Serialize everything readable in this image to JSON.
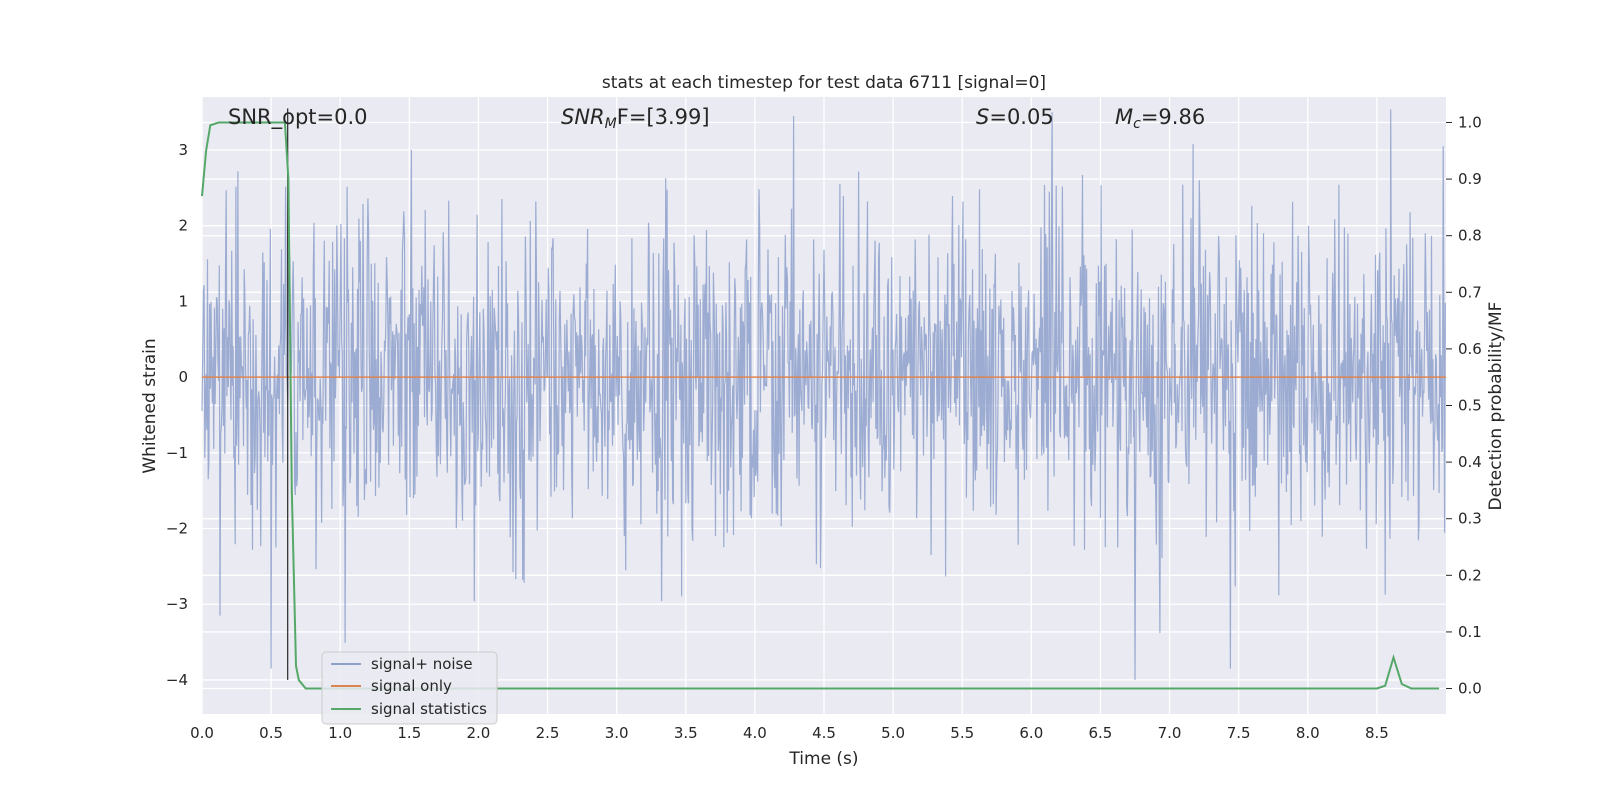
{
  "chart_data": {
    "type": "line",
    "title": "stats at each timestep for test data 6711 [signal=0]",
    "xlabel": "Time (s)",
    "ylabel": "Whitened strain",
    "y2label": "Detection probability/MF",
    "xlim": [
      0,
      9.0
    ],
    "ylim": [
      -4.45,
      3.7
    ],
    "y2lim": [
      -0.045,
      1.045
    ],
    "x_ticks": [
      0.0,
      0.5,
      1.0,
      1.5,
      2.0,
      2.5,
      3.0,
      3.5,
      4.0,
      4.5,
      5.0,
      5.5,
      6.0,
      6.5,
      7.0,
      7.5,
      8.0,
      8.5
    ],
    "x_tick_labels": [
      "0.0",
      "0.5",
      "1.0",
      "1.5",
      "2.0",
      "2.5",
      "3.0",
      "3.5",
      "4.0",
      "4.5",
      "5.0",
      "5.5",
      "6.0",
      "6.5",
      "7.0",
      "7.5",
      "8.0",
      "8.5"
    ],
    "y_ticks": [
      3,
      2,
      1,
      0,
      -1,
      -2,
      -3,
      -4
    ],
    "y_tick_labels": [
      "3",
      "2",
      "1",
      "0",
      "−1",
      "−2",
      "−3",
      "−4"
    ],
    "y2_ticks": [
      1.0,
      0.9,
      0.8,
      0.7,
      0.6,
      0.5,
      0.4,
      0.3,
      0.2,
      0.1,
      0.0
    ],
    "y2_tick_labels": [
      "1.0",
      "0.9",
      "0.8",
      "0.7",
      "0.6",
      "0.5",
      "0.4",
      "0.3",
      "0.2",
      "0.1",
      "0.0"
    ],
    "grid": true,
    "legend_position": "lower-left",
    "annotations": {
      "snr_opt": "SNR_opt=0.0",
      "snr_mf_main": "SNR",
      "snr_mf_sub": "M",
      "snr_mf_rest": "F=[3.99]",
      "s_var": "S",
      "s_rest": "=0.05",
      "mc_var": "M",
      "mc_sub": "c",
      "mc_rest": "=9.86"
    },
    "marker_line_x": 0.62,
    "series": [
      {
        "name": "signal+ noise",
        "color": "#8da0cb",
        "kind": "noise",
        "duration": 9.0,
        "samples": 1800,
        "std": 1.0,
        "max_abs": 3.95,
        "outliers": [
          [
            0.5,
            -3.85
          ],
          [
            0.13,
            -3.15
          ],
          [
            6.75,
            -4.0
          ],
          [
            6.93,
            -3.38
          ],
          [
            4.28,
            3.45
          ],
          [
            6.15,
            3.5
          ],
          [
            7.17,
            3.08
          ],
          [
            8.98,
            3.05
          ]
        ]
      },
      {
        "name": "signal only",
        "color": "#dd8452",
        "x": [
          0.0,
          9.0
        ],
        "y": [
          0.0,
          0.0
        ]
      },
      {
        "name": "signal statistics",
        "color": "#55a868",
        "axis": "right",
        "x": [
          0.0,
          0.03,
          0.06,
          0.12,
          0.2,
          0.3,
          0.4,
          0.5,
          0.6,
          0.625,
          0.65,
          0.68,
          0.7,
          0.75,
          1.0,
          2.0,
          3.0,
          4.0,
          5.0,
          6.0,
          7.0,
          8.0,
          8.5,
          8.56,
          8.62,
          8.68,
          8.75,
          8.8,
          8.95
        ],
        "y": [
          0.87,
          0.95,
          0.995,
          1.0,
          1.0,
          1.0,
          1.0,
          1.0,
          1.0,
          0.9,
          0.35,
          0.04,
          0.015,
          0.0,
          0.0,
          0.0,
          0.0,
          0.0,
          0.0,
          0.0,
          0.0,
          0.0,
          0.0,
          0.005,
          0.055,
          0.008,
          0.0,
          0.0,
          0.0
        ]
      }
    ]
  }
}
